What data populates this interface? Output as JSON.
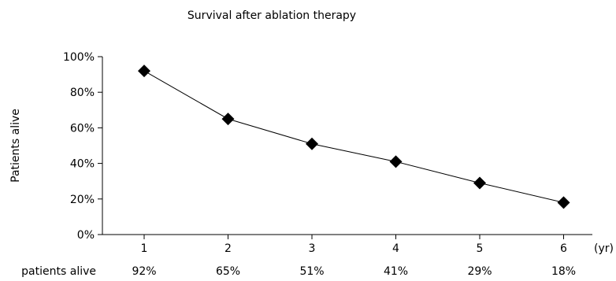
{
  "chart_data": {
    "type": "line",
    "title": "Survival after ablation therapy",
    "ylabel": "Patients alive",
    "x_unit": "(yr)",
    "x": [
      1,
      2,
      3,
      4,
      5,
      6
    ],
    "values": [
      92,
      65,
      51,
      41,
      29,
      18
    ],
    "ylim": [
      0,
      100
    ],
    "y_ticks": [
      "0%",
      "20%",
      "40%",
      "60%",
      "80%",
      "100%"
    ],
    "x_ticks": [
      "1",
      "2",
      "3",
      "4",
      "5",
      "6"
    ],
    "table_row_label": "patients alive",
    "table_row_values": [
      "92%",
      "65%",
      "51%",
      "41%",
      "29%",
      "18%"
    ],
    "marker": "diamond",
    "grid": false,
    "colors": {
      "line": "#000000",
      "marker": "#000000"
    }
  }
}
